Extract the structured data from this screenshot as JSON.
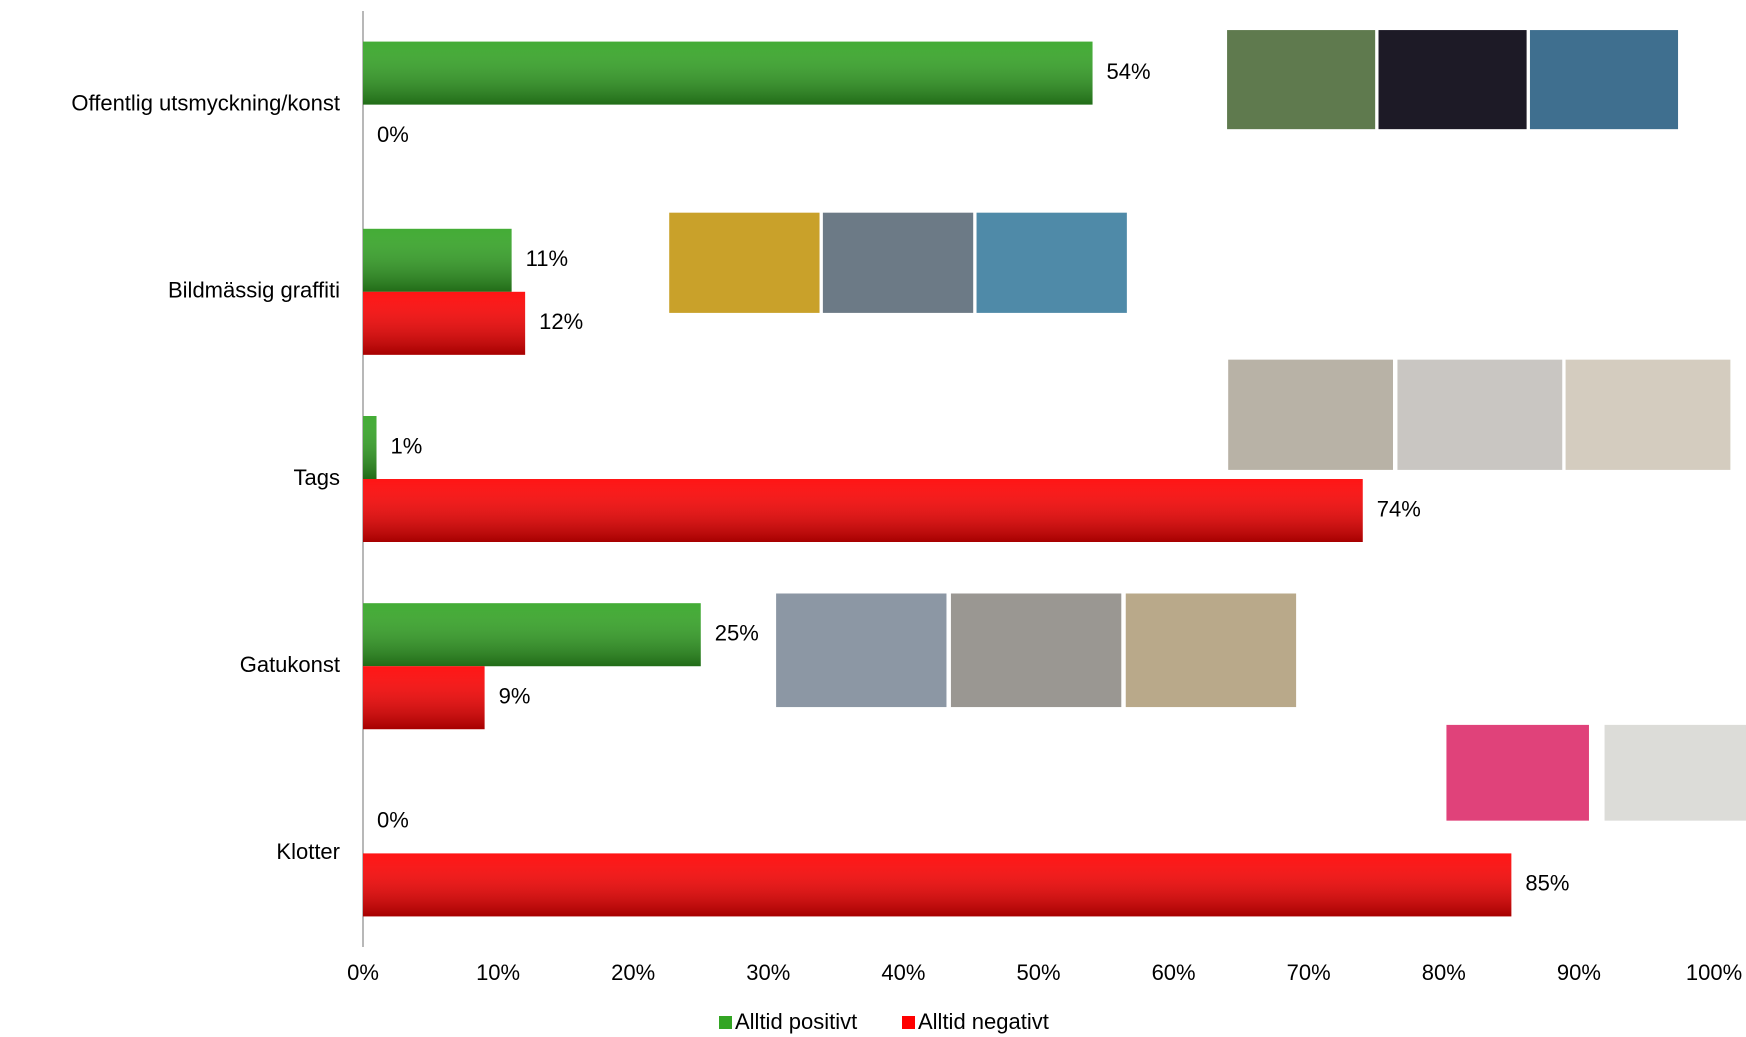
{
  "chart_data": {
    "type": "bar",
    "orientation": "horizontal",
    "categories": [
      "Offentlig utsmyckning/konst",
      "Bildmässig graffiti",
      "Tags",
      "Gatukonst",
      "Klotter"
    ],
    "series": [
      {
        "name": "Alltid positivt",
        "color": "#33a524",
        "values": [
          54,
          11,
          1,
          25,
          0
        ],
        "value_labels": [
          "54%",
          "11%",
          "1%",
          "25%",
          "0%"
        ]
      },
      {
        "name": "Alltid negativt",
        "color": "#ff0000",
        "values": [
          0,
          12,
          74,
          9,
          85
        ],
        "value_labels": [
          "0%",
          "12%",
          "74%",
          "9%",
          "85%"
        ]
      }
    ],
    "xlim": [
      0,
      100
    ],
    "xticks": [
      {
        "value": 0,
        "label": "0%"
      },
      {
        "value": 10,
        "label": "10%"
      },
      {
        "value": 20,
        "label": "20%"
      },
      {
        "value": 30,
        "label": "30%"
      },
      {
        "value": 40,
        "label": "40%"
      },
      {
        "value": 50,
        "label": "50%"
      },
      {
        "value": 60,
        "label": "60%"
      },
      {
        "value": 70,
        "label": "70%"
      },
      {
        "value": 80,
        "label": "80%"
      },
      {
        "value": 90,
        "label": "90%"
      },
      {
        "value": 100,
        "label": "100%"
      }
    ],
    "grid": false,
    "legend": "bottom"
  }
}
